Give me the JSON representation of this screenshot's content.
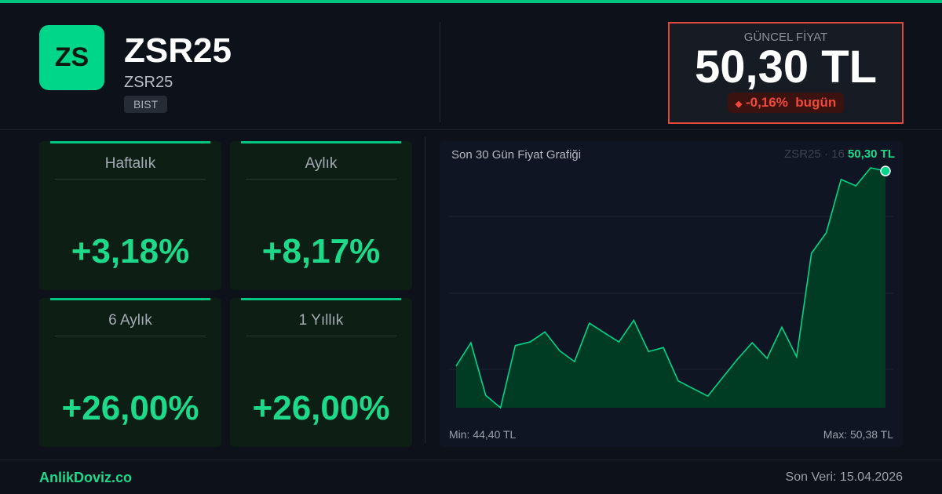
{
  "header": {
    "logo_text": "ZS",
    "title": "ZSR25",
    "subtitle": "ZSR25",
    "exchange": "BIST"
  },
  "price": {
    "label": "GÜNCEL FİYAT",
    "value": "50,30 TL",
    "change": "-0,16%",
    "change_suffix": "bugün",
    "change_color": "#f0493c"
  },
  "cards": [
    {
      "label": "Haftalık",
      "value": "+3,18%"
    },
    {
      "label": "Aylık",
      "value": "+8,17%"
    },
    {
      "label": "6 Aylık",
      "value": "+26,00%"
    },
    {
      "label": "1 Yıllık",
      "value": "+26,00%"
    }
  ],
  "chart_data": {
    "type": "area",
    "title": "Son 30 Gün Fiyat Grafiği",
    "ticker_note": "ZSR25 · 16",
    "last_label": "50,30 TL",
    "min_label": "Min: 44,40 TL",
    "max_label": "Max: 50,38 TL",
    "ylim": [
      44.4,
      50.38
    ],
    "grid": true,
    "color": "#00d68a",
    "values": [
      45.44,
      46.02,
      44.71,
      44.4,
      45.95,
      46.04,
      46.29,
      45.82,
      45.55,
      46.51,
      46.27,
      46.04,
      46.58,
      45.8,
      45.9,
      45.07,
      44.88,
      44.69,
      45.15,
      45.61,
      46.02,
      45.63,
      46.41,
      45.67,
      48.25,
      48.76,
      50.09,
      49.93,
      50.38,
      50.3
    ]
  },
  "footer": {
    "brand": "AnlikDoviz.co",
    "last_data": "Son Veri: 15.04.2026"
  },
  "colors": {
    "accent": "#00c77f",
    "negative": "#e0483b",
    "background": "#0d111a"
  }
}
